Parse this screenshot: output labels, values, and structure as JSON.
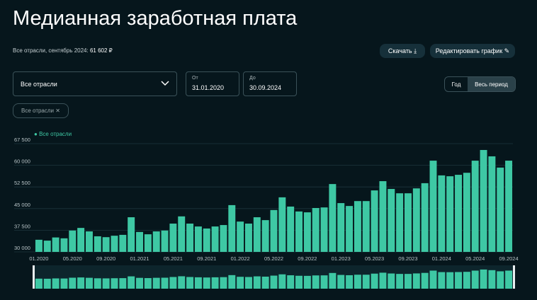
{
  "header": {
    "title": "Медианная заработная плата",
    "subtitle": "Все отрасли, сентябрь 2024:",
    "current_value": "61 602 ₽"
  },
  "buttons": {
    "download": "Скачать",
    "edit": "Редактировать график"
  },
  "filters": {
    "industry": "Все отрасли",
    "from_label": "От",
    "from": "31.01.2020",
    "to_label": "До",
    "to": "30.09.2024",
    "period_year": "Год",
    "period_all": "Весь период",
    "chip": "Все отрасли"
  },
  "chart_data": {
    "type": "bar",
    "categories": [
      "01.2020",
      null,
      null,
      null,
      "05.2020",
      null,
      null,
      null,
      "09.2020",
      null,
      null,
      null,
      "01.2021",
      null,
      null,
      null,
      "05.2021",
      null,
      null,
      null,
      "09.2021",
      null,
      null,
      null,
      "01.2022",
      null,
      null,
      null,
      "05.2022",
      null,
      null,
      null,
      "09.2022",
      null,
      null,
      null,
      "01.2023",
      null,
      null,
      null,
      "05.2023",
      null,
      null,
      null,
      "09.2023",
      null,
      null,
      null,
      "01.2024",
      null,
      null,
      null,
      "05.2024",
      null,
      null,
      null,
      "09.2024"
    ],
    "series": [
      {
        "name": "Все отрасли",
        "color": "#3ec8a4",
        "values": [
          34200,
          33900,
          35000,
          34700,
          37400,
          38300,
          37100,
          35400,
          35100,
          35600,
          35900,
          42000,
          36900,
          36100,
          37100,
          37400,
          39800,
          42300,
          39800,
          38800,
          38100,
          38800,
          39300,
          46200,
          40500,
          39800,
          42000,
          41000,
          44500,
          48900,
          45700,
          44000,
          43700,
          45200,
          45400,
          53500,
          46900,
          45900,
          47600,
          47600,
          51300,
          54500,
          51800,
          50300,
          50300,
          52000,
          53800,
          61600,
          56500,
          56200,
          56700,
          57400,
          61600,
          65300,
          63100,
          59200,
          61602
        ]
      }
    ],
    "ylim": [
      30000,
      67500
    ],
    "yticks": [
      {
        "value": 30000,
        "label": "30 000"
      },
      {
        "value": 37500,
        "label": "37 500"
      },
      {
        "value": 45000,
        "label": "45 000"
      },
      {
        "value": 52500,
        "label": "52 500"
      },
      {
        "value": 60000,
        "label": "60 000"
      },
      {
        "value": 67500,
        "label": "67 500"
      }
    ],
    "grid": true
  }
}
